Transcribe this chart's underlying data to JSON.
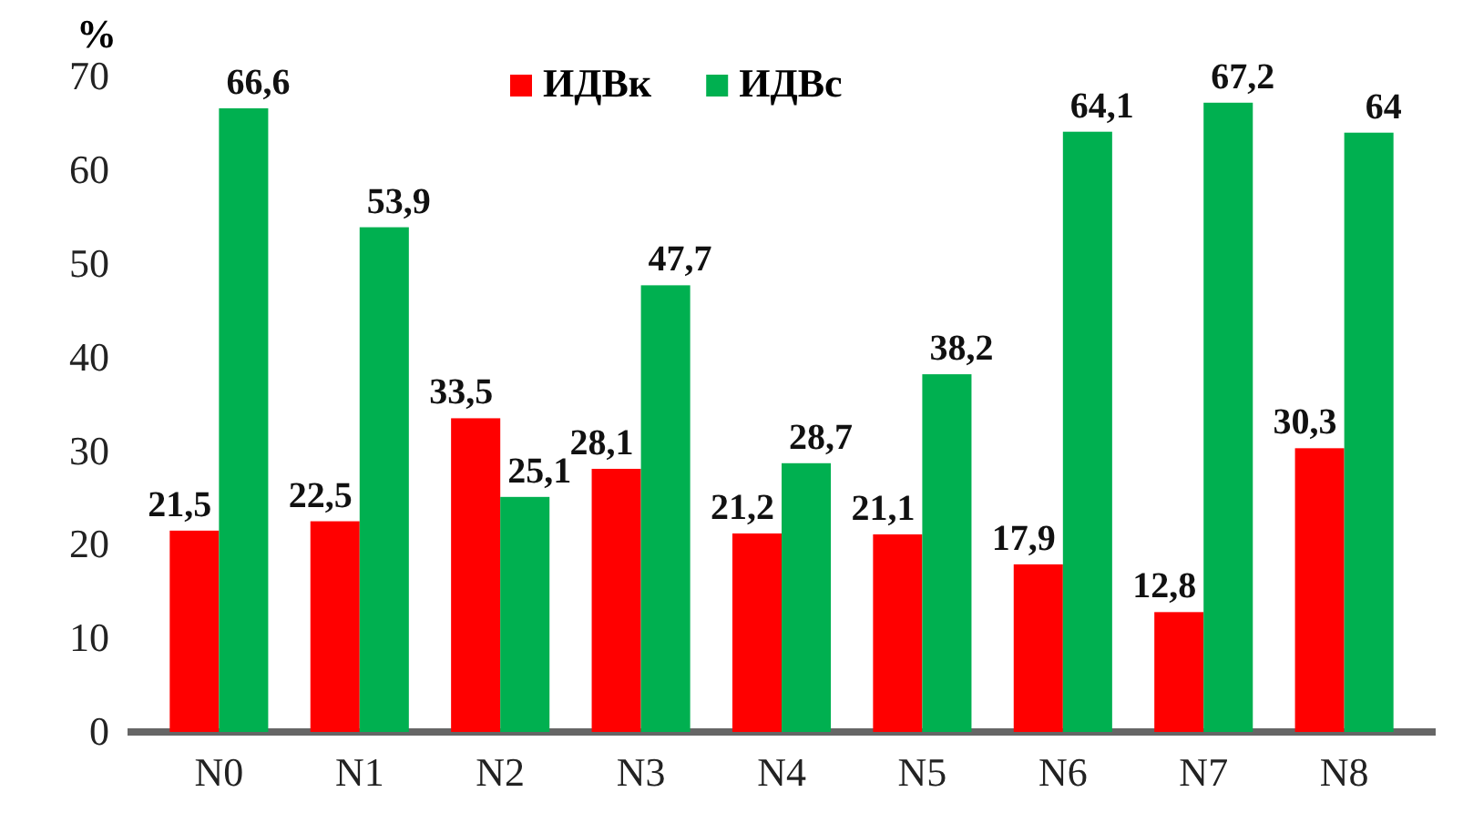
{
  "chart_data": {
    "type": "bar",
    "ylabel": "%",
    "categories": [
      "N0",
      "N1",
      "N2",
      "N3",
      "N4",
      "N5",
      "N6",
      "N7",
      "N8"
    ],
    "series": [
      {
        "name": "ИДВк",
        "color": "#ff0000",
        "values": [
          21.5,
          22.5,
          33.5,
          28.1,
          21.2,
          21.1,
          17.9,
          12.8,
          30.3
        ],
        "value_labels": [
          "21,5",
          "22,5",
          "33,5",
          "28,1",
          "21,2",
          "21,1",
          "17,9",
          "12,8",
          "30,3"
        ]
      },
      {
        "name": "ИДВс",
        "color": "#00b050",
        "values": [
          66.6,
          53.9,
          25.1,
          47.7,
          28.7,
          38.2,
          64.1,
          67.2,
          64
        ],
        "value_labels": [
          "66,6",
          "53,9",
          "25,1",
          "47,7",
          "28,7",
          "38,2",
          "64,1",
          "67,2",
          "64"
        ]
      }
    ],
    "ylim": [
      0,
      70
    ],
    "yticks": [
      0,
      10,
      20,
      30,
      40,
      50,
      60,
      70
    ],
    "grid": false,
    "legend": "top"
  }
}
